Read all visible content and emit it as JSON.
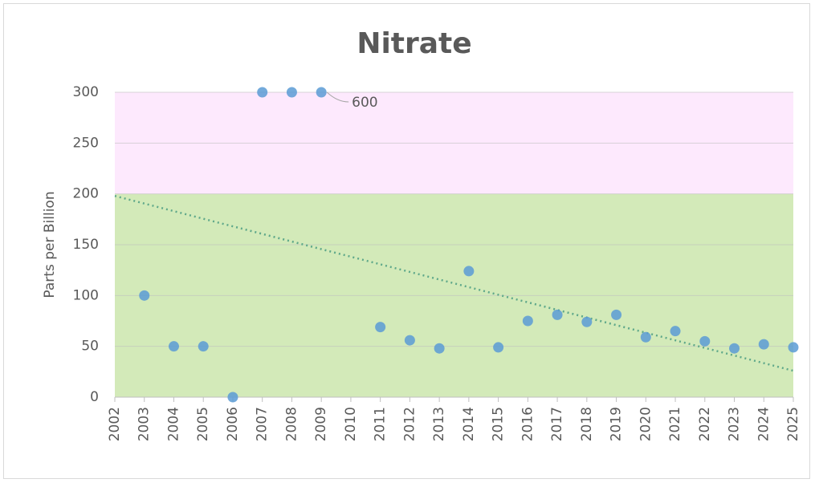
{
  "chart_data": {
    "type": "scatter",
    "title": "Nitrate",
    "ylabel": "Parts per Billion",
    "series": [
      {
        "name": "Nitrate",
        "color": "#5b9bd5",
        "x": [
          2003,
          2004,
          2005,
          2006,
          2007,
          2008,
          2009,
          2011,
          2012,
          2013,
          2014,
          2015,
          2016,
          2017,
          2018,
          2019,
          2020,
          2021,
          2022,
          2023,
          2024,
          2025
        ],
        "values": [
          100,
          50,
          50,
          0,
          300,
          300,
          300,
          69,
          56,
          48,
          124,
          49,
          75,
          81,
          74,
          81,
          59,
          65,
          55,
          48,
          52,
          49
        ]
      }
    ],
    "annotation": "600",
    "bands": [
      {
        "from": 0,
        "to": 200,
        "color": "#d3eab9"
      },
      {
        "from": 200,
        "to": 300,
        "color": "#fde9fd"
      }
    ],
    "trendline": {
      "x": [
        2002,
        2025
      ],
      "y": [
        198,
        26
      ],
      "color": "#5fa88a"
    },
    "xlim": [
      2002,
      2025
    ],
    "xticks": [
      2002,
      2003,
      2004,
      2005,
      2006,
      2007,
      2008,
      2009,
      2010,
      2011,
      2012,
      2013,
      2014,
      2015,
      2016,
      2017,
      2018,
      2019,
      2020,
      2021,
      2022,
      2023,
      2024,
      2025
    ],
    "ylim": [
      0,
      300
    ],
    "yticks": [
      0,
      50,
      100,
      150,
      200,
      250,
      300
    ],
    "grid": true
  }
}
